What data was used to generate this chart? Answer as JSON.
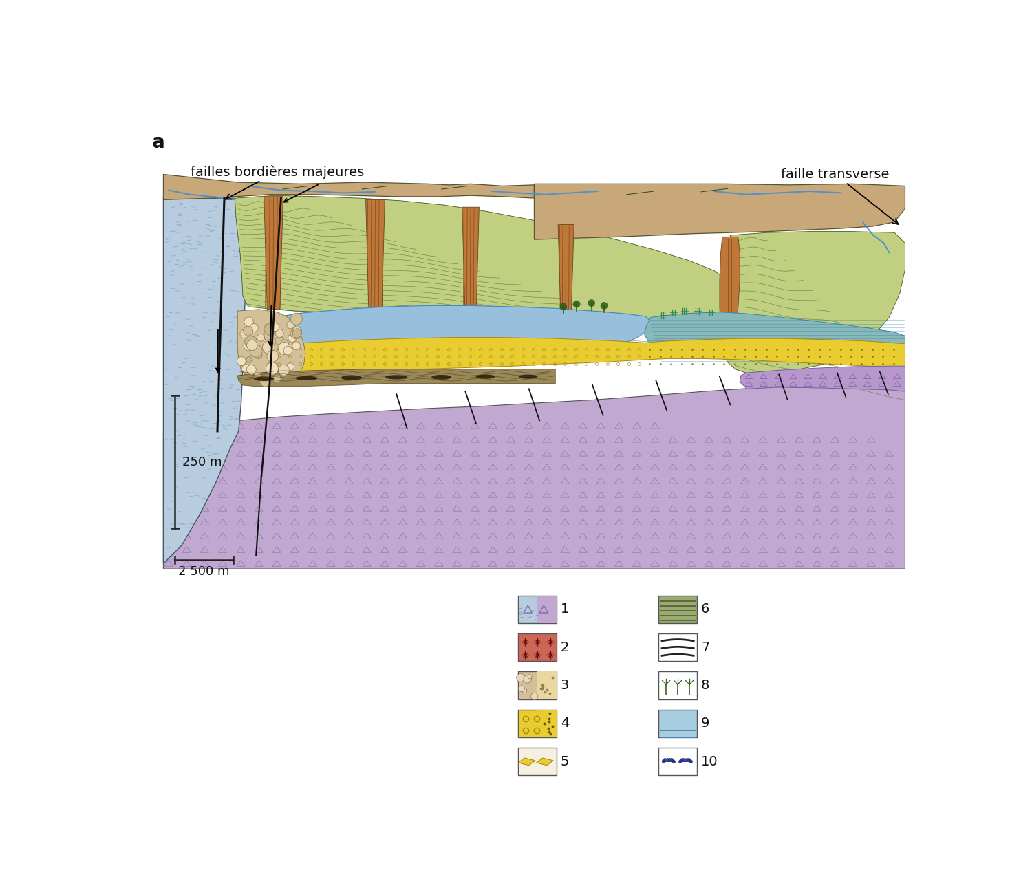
{
  "label_a": "a",
  "annotation1": "failles bordières majeures",
  "annotation2": "faille transverse",
  "scale_v": "250 m",
  "scale_h": "2 500 m",
  "bg": "#ffffff",
  "colors": {
    "brown_top": "#c8a878",
    "blue_left": "#b8cce0",
    "green_slope": "#c8d888",
    "orange_wall": "#c4824a",
    "lake_blue": "#a8cce0",
    "teal_lake": "#88b8b0",
    "yellow_sand": "#e8cc30",
    "purple": "#c0a8d0",
    "conglomerate": "#d4c4a0",
    "organic": "#9a8858",
    "river": "#5090cc"
  }
}
